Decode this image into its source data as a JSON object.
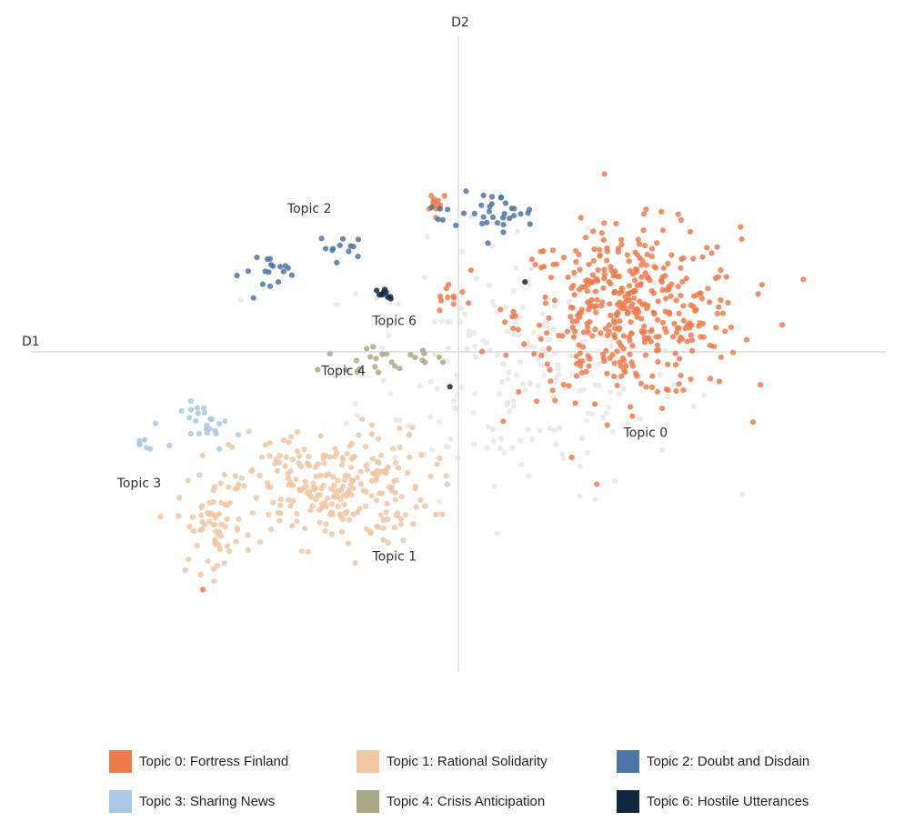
{
  "chart_data": {
    "type": "scatter",
    "xlabel": "D1",
    "ylabel": "D2",
    "xlim": [
      -10,
      10
    ],
    "ylim": [
      -8.5,
      8
    ],
    "axes": "cross at origin, light gray",
    "grid": false,
    "legend_position": "bottom",
    "background_points_color": "#e6e6e6",
    "topic_labels": [
      {
        "text": "Topic 2",
        "x": -3.5,
        "y": 3.6
      },
      {
        "text": "Topic 6",
        "x": -1.5,
        "y": 0.7
      },
      {
        "text": "Topic 4",
        "x": -2.7,
        "y": -0.6
      },
      {
        "text": "Topic 3",
        "x": -7.5,
        "y": -3.5
      },
      {
        "text": "Topic 1",
        "x": -1.5,
        "y": -5.4
      },
      {
        "text": "Topic 0",
        "x": 4.4,
        "y": -2.2
      }
    ],
    "series": [
      {
        "name": "Topic 0: Fortress Finland",
        "color": "#ee7b4d",
        "clusters": [
          {
            "center": [
              4.0,
              1.0
            ],
            "spread": [
              2.6,
              2.2
            ],
            "count": 430
          },
          {
            "center": [
              -0.5,
              3.9
            ],
            "spread": [
              0.3,
              0.3
            ],
            "count": 14
          },
          {
            "center": [
              -0.2,
              1.4
            ],
            "spread": [
              0.4,
              0.4
            ],
            "count": 10
          },
          {
            "center": [
              -6.0,
              -6.2
            ],
            "spread": [
              0.05,
              0.05
            ],
            "count": 1
          }
        ]
      },
      {
        "name": "Topic 1: Rational Solidarity",
        "color": "#f1c6a3",
        "clusters": [
          {
            "center": [
              -3.0,
              -3.5
            ],
            "spread": [
              2.3,
              1.5
            ],
            "count": 260
          },
          {
            "center": [
              -5.8,
              -4.5
            ],
            "spread": [
              0.8,
              1.2
            ],
            "count": 60
          }
        ]
      },
      {
        "name": "Topic 2: Doubt and Disdain",
        "color": "#4e76a8",
        "clusters": [
          {
            "center": [
              0.9,
              3.6
            ],
            "spread": [
              0.9,
              0.5
            ],
            "count": 30
          },
          {
            "center": [
              -2.7,
              2.7
            ],
            "spread": [
              0.6,
              0.3
            ],
            "count": 12
          },
          {
            "center": [
              -4.2,
              2.1
            ],
            "spread": [
              0.9,
              0.5
            ],
            "count": 18
          },
          {
            "center": [
              -0.4,
              3.5
            ],
            "spread": [
              0.6,
              0.3
            ],
            "count": 6
          }
        ]
      },
      {
        "name": "Topic 3: Sharing News",
        "color": "#a9c8e3",
        "clusters": [
          {
            "center": [
              -5.8,
              -1.9
            ],
            "spread": [
              0.7,
              0.6
            ],
            "count": 25
          },
          {
            "center": [
              -7.5,
              -2.4
            ],
            "spread": [
              0.2,
              0.2
            ],
            "count": 6
          }
        ]
      },
      {
        "name": "Topic 4: Crisis Anticipation",
        "color": "#aaa987",
        "clusters": [
          {
            "center": [
              -1.7,
              -0.2
            ],
            "spread": [
              1.5,
              0.3
            ],
            "count": 25
          }
        ]
      },
      {
        "name": "Topic 6: Hostile Utterances",
        "color": "#0f2942",
        "clusters": [
          {
            "center": [
              -1.7,
              1.5
            ],
            "spread": [
              0.25,
              0.15
            ],
            "count": 10
          },
          {
            "center": [
              1.6,
              1.8
            ],
            "spread": [
              0.05,
              0.05
            ],
            "count": 1
          },
          {
            "center": [
              -0.2,
              -0.9
            ],
            "spread": [
              0.05,
              0.05
            ],
            "count": 1
          }
        ]
      }
    ],
    "background": {
      "clusters": [
        {
          "center": [
            1.5,
            -0.5
          ],
          "spread": [
            3.8,
            3.2
          ],
          "count": 220
        }
      ]
    }
  }
}
